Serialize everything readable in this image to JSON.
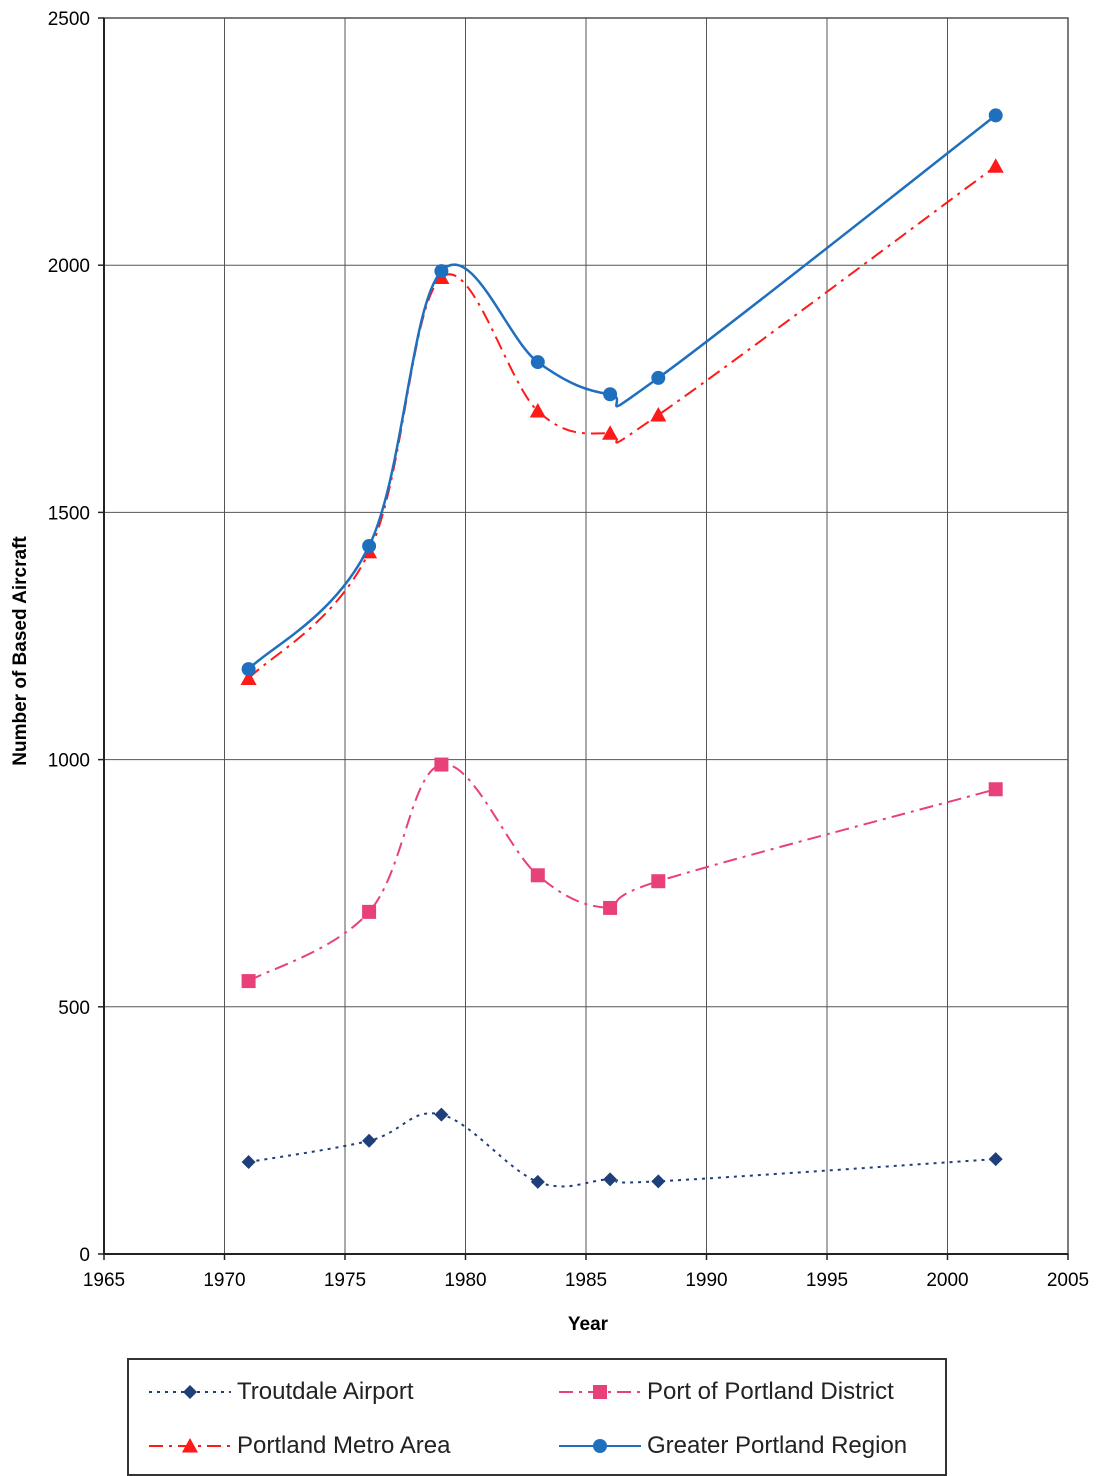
{
  "chart_data": {
    "type": "line",
    "xlabel": "Year",
    "ylabel": "Number of Based Aircraft",
    "xlim": [
      1965,
      2005
    ],
    "ylim": [
      0,
      2500
    ],
    "xticks": [
      1965,
      1970,
      1975,
      1980,
      1985,
      1990,
      1995,
      2000,
      2005
    ],
    "yticks": [
      0,
      500,
      1000,
      1500,
      2000,
      2500
    ],
    "grid": true,
    "legend_position": "bottom",
    "series": [
      {
        "name": "Troutdale Airport",
        "color": "#1f3f7a",
        "marker": "diamond",
        "line_style": "dotted",
        "x": [
          1971,
          1976,
          1979,
          1983,
          1986,
          1988,
          2002
        ],
        "values": [
          186,
          229,
          282,
          146,
          151,
          147,
          192
        ]
      },
      {
        "name": "Port of Portland District",
        "color": "#e8407a",
        "marker": "square",
        "line_style": "dash-dot",
        "x": [
          1971,
          1976,
          1979,
          1983,
          1986,
          1988,
          2002
        ],
        "values": [
          552,
          692,
          990,
          766,
          700,
          754,
          940
        ]
      },
      {
        "name": "Portland Metro Area",
        "color": "#ff1a1a",
        "marker": "triangle",
        "line_style": "dash-dot",
        "x": [
          1971,
          1976,
          1979,
          1983,
          1986,
          1988,
          2002
        ],
        "values": [
          1164,
          1420,
          1975,
          1705,
          1660,
          1697,
          2200
        ]
      },
      {
        "name": "Greater Portland Region",
        "color": "#1f6fbf",
        "marker": "circle",
        "line_style": "solid",
        "x": [
          1971,
          1976,
          1979,
          1983,
          1986,
          1988,
          2002
        ],
        "values": [
          1183,
          1432,
          1988,
          1804,
          1739,
          1772,
          2303
        ]
      }
    ]
  }
}
